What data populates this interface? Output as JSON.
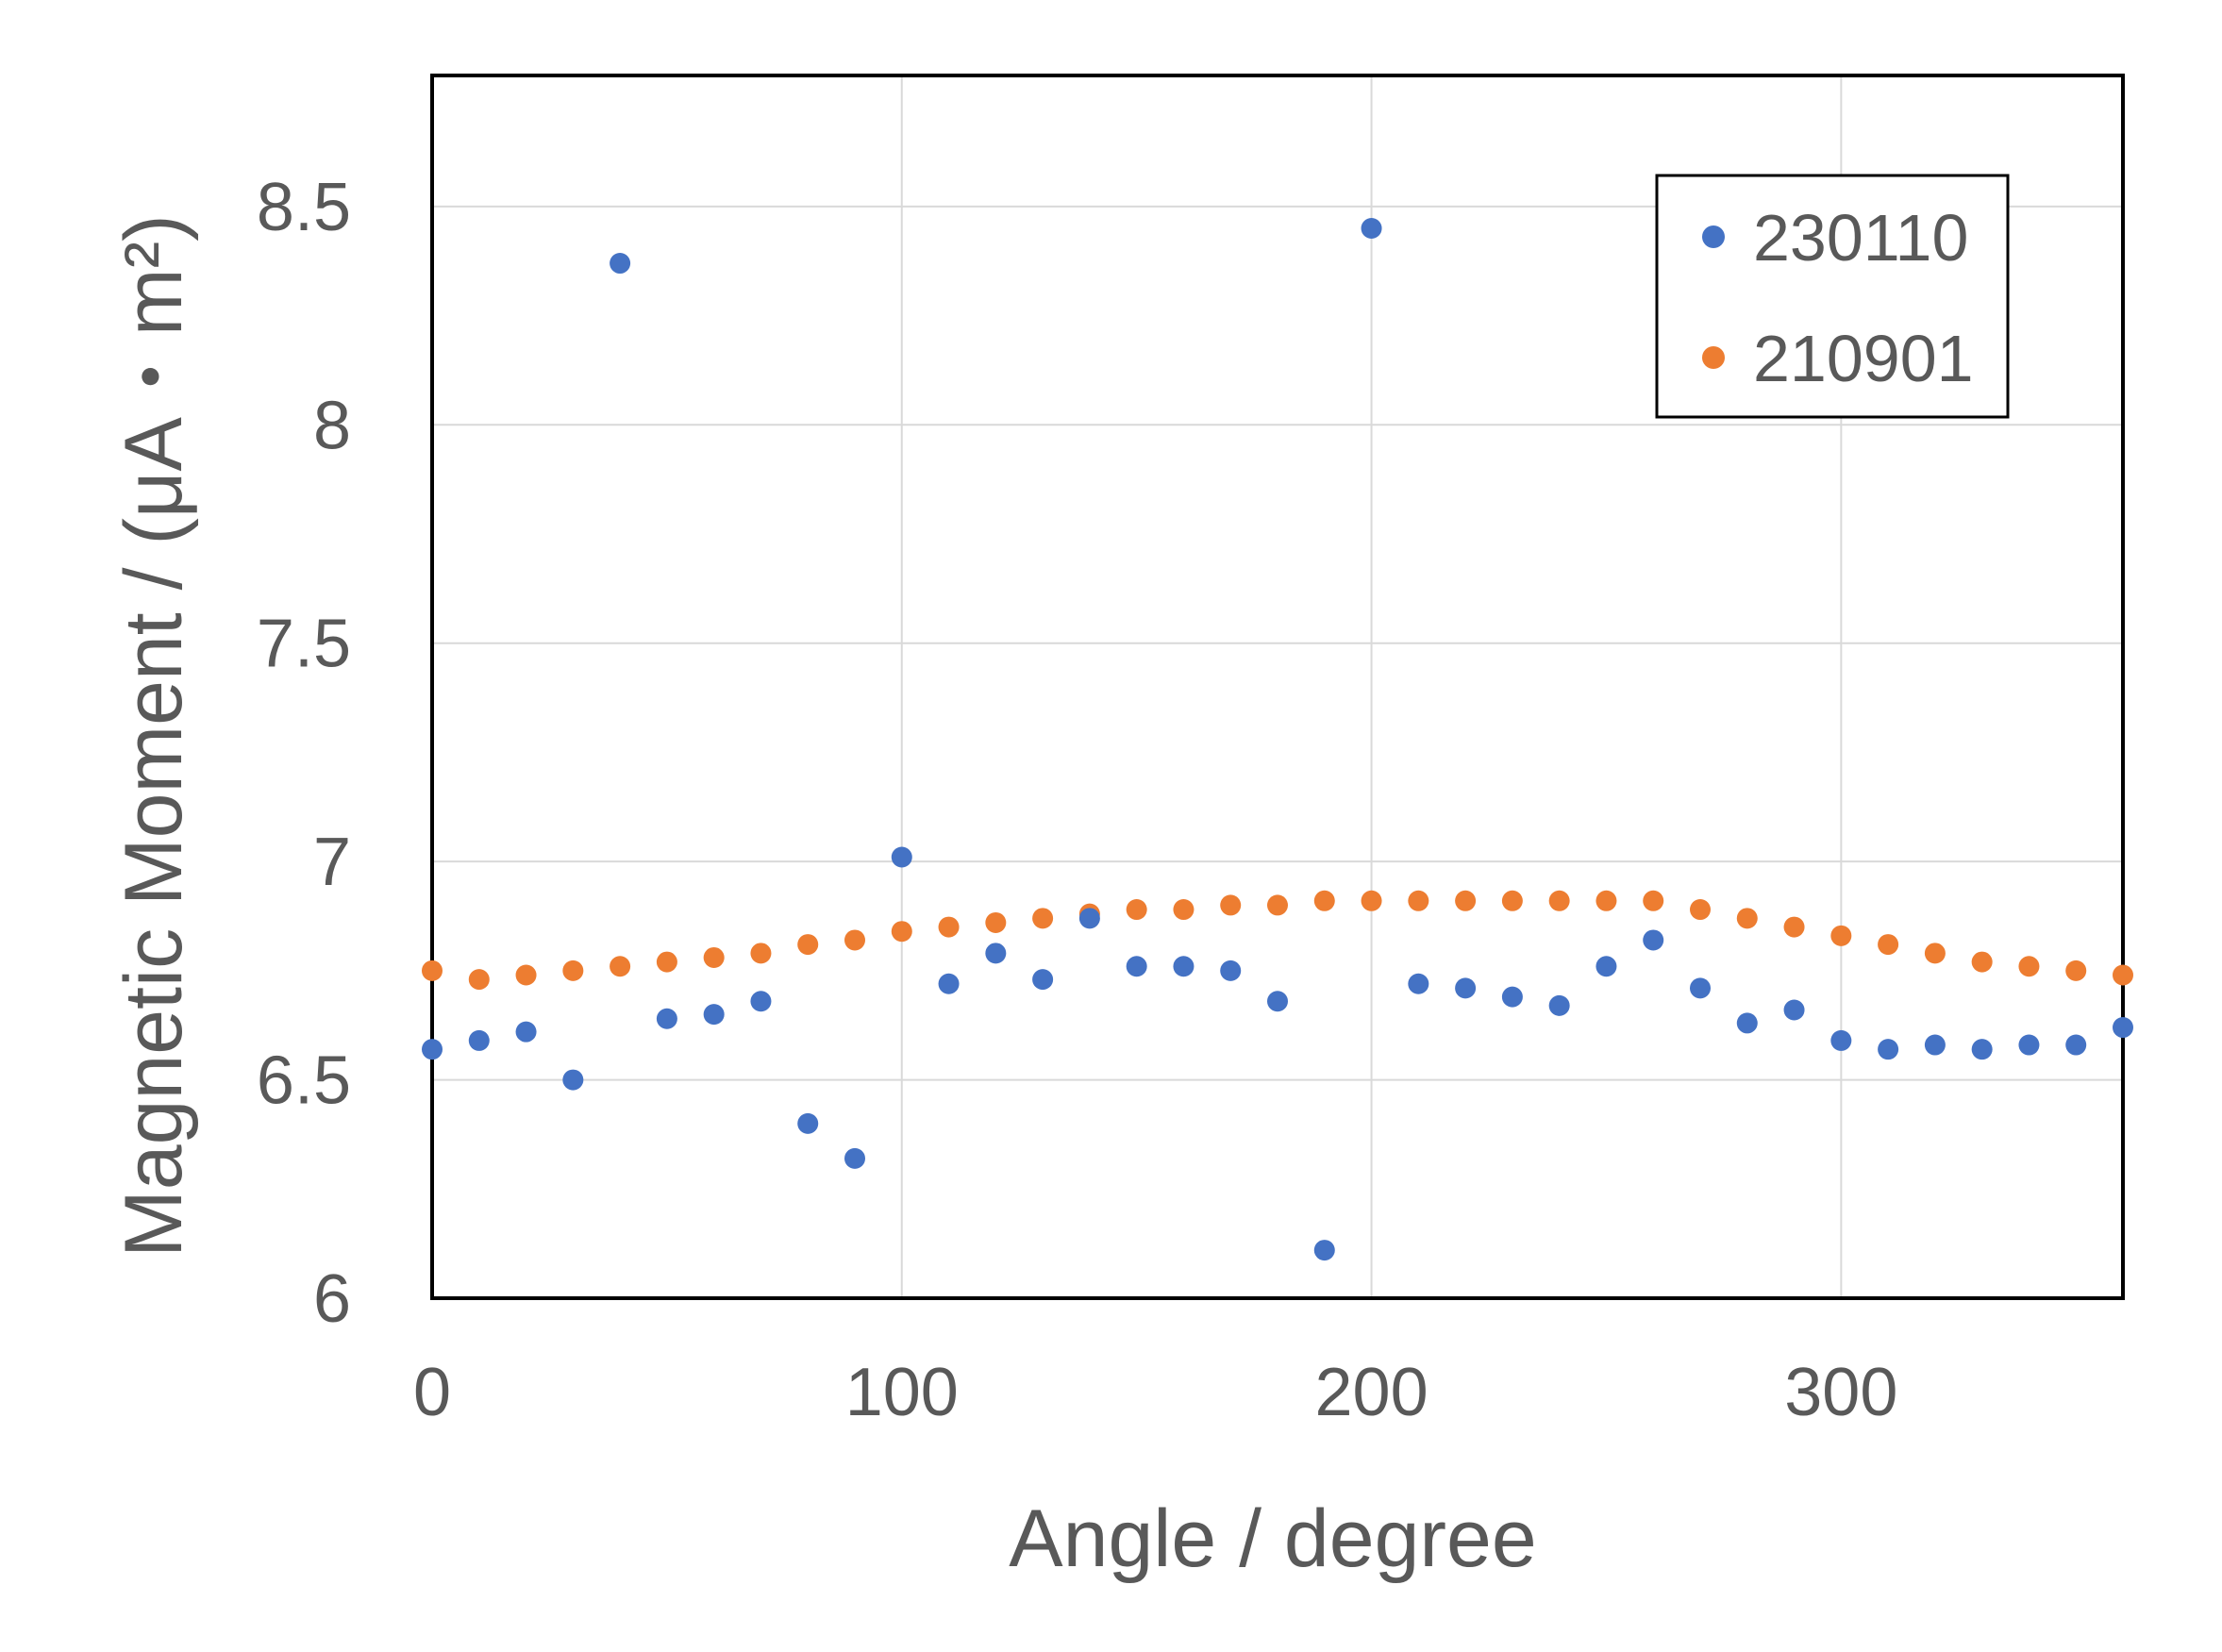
{
  "chart_data": {
    "type": "scatter",
    "title": "",
    "xlabel": "Angle / degree",
    "ylabel": "Magnetic Moment / (μA・m²)",
    "xlim": [
      0,
      360
    ],
    "ylim": [
      6,
      8.8
    ],
    "x_ticks": [
      0,
      100,
      200,
      300
    ],
    "x_tick_labels": [
      "0",
      "100",
      "200",
      "300"
    ],
    "y_ticks": [
      6,
      6.5,
      7,
      7.5,
      8,
      8.5
    ],
    "y_tick_labels": [
      "6",
      "6.5",
      "7",
      "7.5",
      "8",
      "8.5"
    ],
    "grid": true,
    "legend_position": "top-right",
    "x": [
      0,
      10,
      20,
      30,
      40,
      50,
      60,
      70,
      80,
      90,
      100,
      110,
      120,
      130,
      140,
      150,
      160,
      170,
      180,
      190,
      200,
      210,
      220,
      230,
      240,
      250,
      260,
      270,
      280,
      290,
      300,
      310,
      320,
      330,
      340,
      350,
      360
    ],
    "series": [
      {
        "name": "230110",
        "color": "#4472C4",
        "values": [
          6.57,
          6.59,
          6.61,
          6.5,
          8.37,
          6.64,
          6.65,
          6.68,
          6.4,
          6.32,
          7.01,
          6.72,
          6.79,
          6.73,
          6.87,
          6.76,
          6.76,
          6.75,
          6.68,
          6.11,
          8.45,
          6.72,
          6.71,
          6.69,
          6.67,
          6.76,
          6.82,
          6.71,
          6.63,
          6.66,
          6.59,
          6.57,
          6.58,
          6.57,
          6.58,
          6.58,
          6.62
        ]
      },
      {
        "name": "210901",
        "color": "#ED7D31",
        "values": [
          6.75,
          6.73,
          6.74,
          6.75,
          6.76,
          6.77,
          6.78,
          6.79,
          6.81,
          6.82,
          6.84,
          6.85,
          6.86,
          6.87,
          6.88,
          6.89,
          6.89,
          6.9,
          6.9,
          6.91,
          6.91,
          6.91,
          6.91,
          6.91,
          6.91,
          6.91,
          6.91,
          6.89,
          6.87,
          6.85,
          6.83,
          6.81,
          6.79,
          6.77,
          6.76,
          6.75,
          6.74
        ]
      }
    ]
  }
}
